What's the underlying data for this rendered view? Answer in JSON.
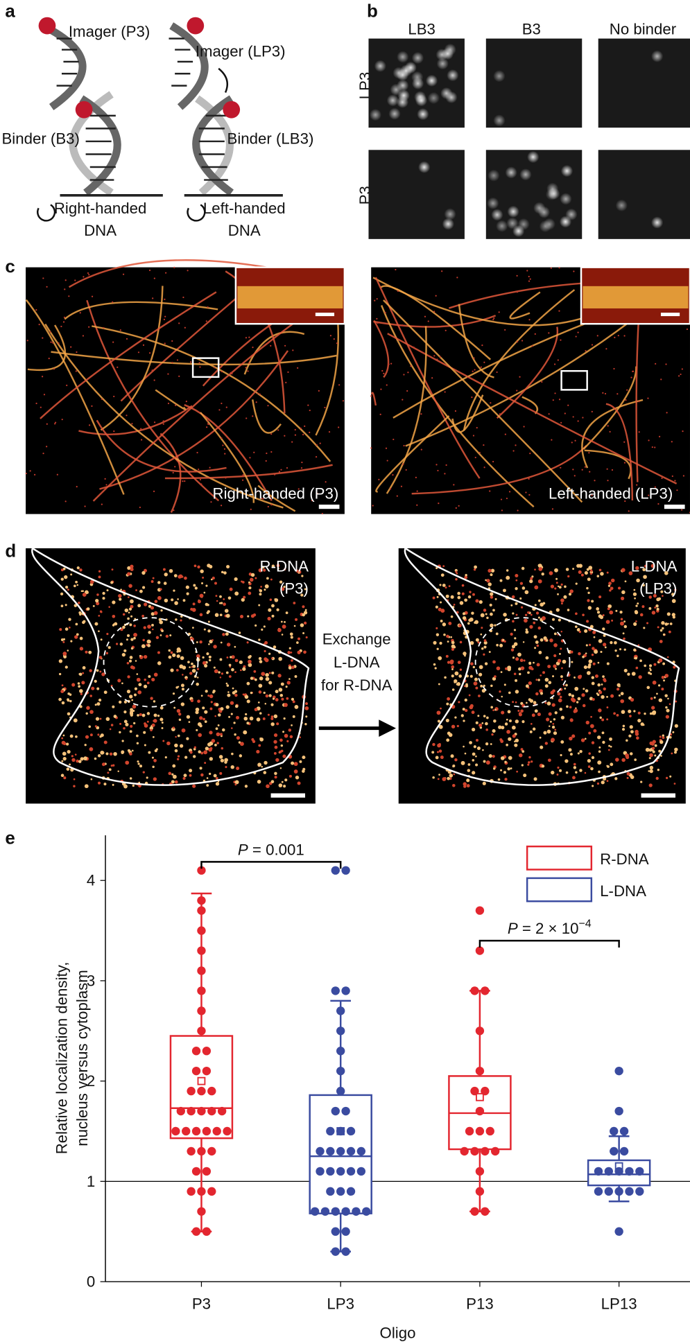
{
  "panels": {
    "a": {
      "label": "a",
      "imager_p3": "Imager (P3)",
      "imager_lp3": "Imager (LP3)",
      "binder_b3": "Binder (B3)",
      "binder_lb3": "Binder (LB3)",
      "right_handed": [
        "Right-handed",
        "DNA"
      ],
      "left_handed": [
        "Left-handed",
        "DNA"
      ]
    },
    "b": {
      "label": "b",
      "columns": [
        "LB3",
        "B3",
        "No binder"
      ],
      "rows": [
        "LP3",
        "P3"
      ]
    },
    "c": {
      "label": "c",
      "left_caption": "Right-handed (P3)",
      "right_caption": "Left-handed (LP3)"
    },
    "d": {
      "label": "d",
      "left_caption": [
        "R-DNA",
        "(P3)"
      ],
      "right_caption": [
        "L-DNA",
        "(LP3)"
      ],
      "arrow_text": [
        "Exchange",
        "L-DNA",
        "for R-DNA"
      ]
    },
    "e": {
      "label": "e"
    }
  },
  "chart_data": {
    "type": "box",
    "y_label": [
      "Relative localization density,",
      "nucleus versus cytoplasm"
    ],
    "x_label": "Oligo",
    "categories": [
      "P3",
      "LP3",
      "P13",
      "LP13"
    ],
    "ylim": [
      0,
      4.45
    ],
    "yticks": [
      0,
      1,
      2,
      3,
      4
    ],
    "reference_line": 1,
    "legend": "upper right",
    "annotations": [
      {
        "italic": "P",
        "text": " = 0.001"
      },
      {
        "italic": "P",
        "text": " = 2 × 10",
        "superscript": "−4"
      }
    ],
    "series": [
      {
        "name": "R-DNA",
        "color": "#e3262f",
        "values": [
          [
            4.1,
            3.8,
            3.7,
            3.5,
            3.3,
            3.1,
            2.9,
            2.7,
            2.5,
            2.3,
            2.3,
            2.1,
            2.1,
            1.9,
            1.9,
            1.9,
            1.7,
            1.7,
            1.7,
            1.7,
            1.7,
            1.5,
            1.5,
            1.5,
            1.5,
            1.5,
            1.5,
            1.3,
            1.3,
            1.3,
            1.1,
            1.1,
            0.9,
            0.9,
            0.9,
            0.7,
            0.5,
            0.5
          ],
          null,
          [
            3.7,
            3.3,
            2.9,
            2.9,
            2.5,
            2.1,
            1.9,
            1.9,
            1.7,
            1.5,
            1.5,
            1.5,
            1.3,
            1.3,
            1.3,
            1.3,
            1.1,
            0.9,
            0.7,
            0.7
          ],
          null
        ],
        "q1": [
          1.43,
          null,
          1.32,
          null
        ],
        "median": [
          1.73,
          null,
          1.68,
          null
        ],
        "q3": [
          2.45,
          null,
          2.05,
          null
        ],
        "whisker_low": [
          0.5,
          null,
          0.7,
          null
        ],
        "whisker_high": [
          3.87,
          null,
          2.9,
          null
        ],
        "mean": [
          2.0,
          null,
          1.84,
          null
        ]
      },
      {
        "name": "L-DNA",
        "color": "#3a4ba0",
        "values": [
          null,
          [
            4.1,
            4.1,
            2.9,
            2.9,
            2.7,
            2.5,
            2.3,
            2.1,
            1.9,
            1.7,
            1.7,
            1.5,
            1.5,
            1.5,
            1.3,
            1.3,
            1.3,
            1.3,
            1.3,
            1.1,
            1.1,
            1.1,
            1.1,
            1.1,
            0.9,
            0.9,
            0.9,
            0.7,
            0.7,
            0.7,
            0.7,
            0.7,
            0.7,
            0.5,
            0.5,
            0.3,
            0.3
          ],
          null,
          [
            2.1,
            1.7,
            1.5,
            1.5,
            1.3,
            1.3,
            1.1,
            1.1,
            1.1,
            1.1,
            1.1,
            0.9,
            0.9,
            0.9,
            0.9,
            0.9,
            0.5
          ]
        ],
        "q1": [
          null,
          0.68,
          null,
          0.96
        ],
        "median": [
          null,
          1.25,
          null,
          1.07
        ],
        "q3": [
          null,
          1.86,
          null,
          1.21
        ],
        "whisker_low": [
          null,
          0.3,
          null,
          0.8
        ],
        "whisker_high": [
          null,
          2.8,
          null,
          1.45
        ],
        "mean": [
          null,
          1.5,
          null,
          1.15
        ]
      }
    ]
  }
}
